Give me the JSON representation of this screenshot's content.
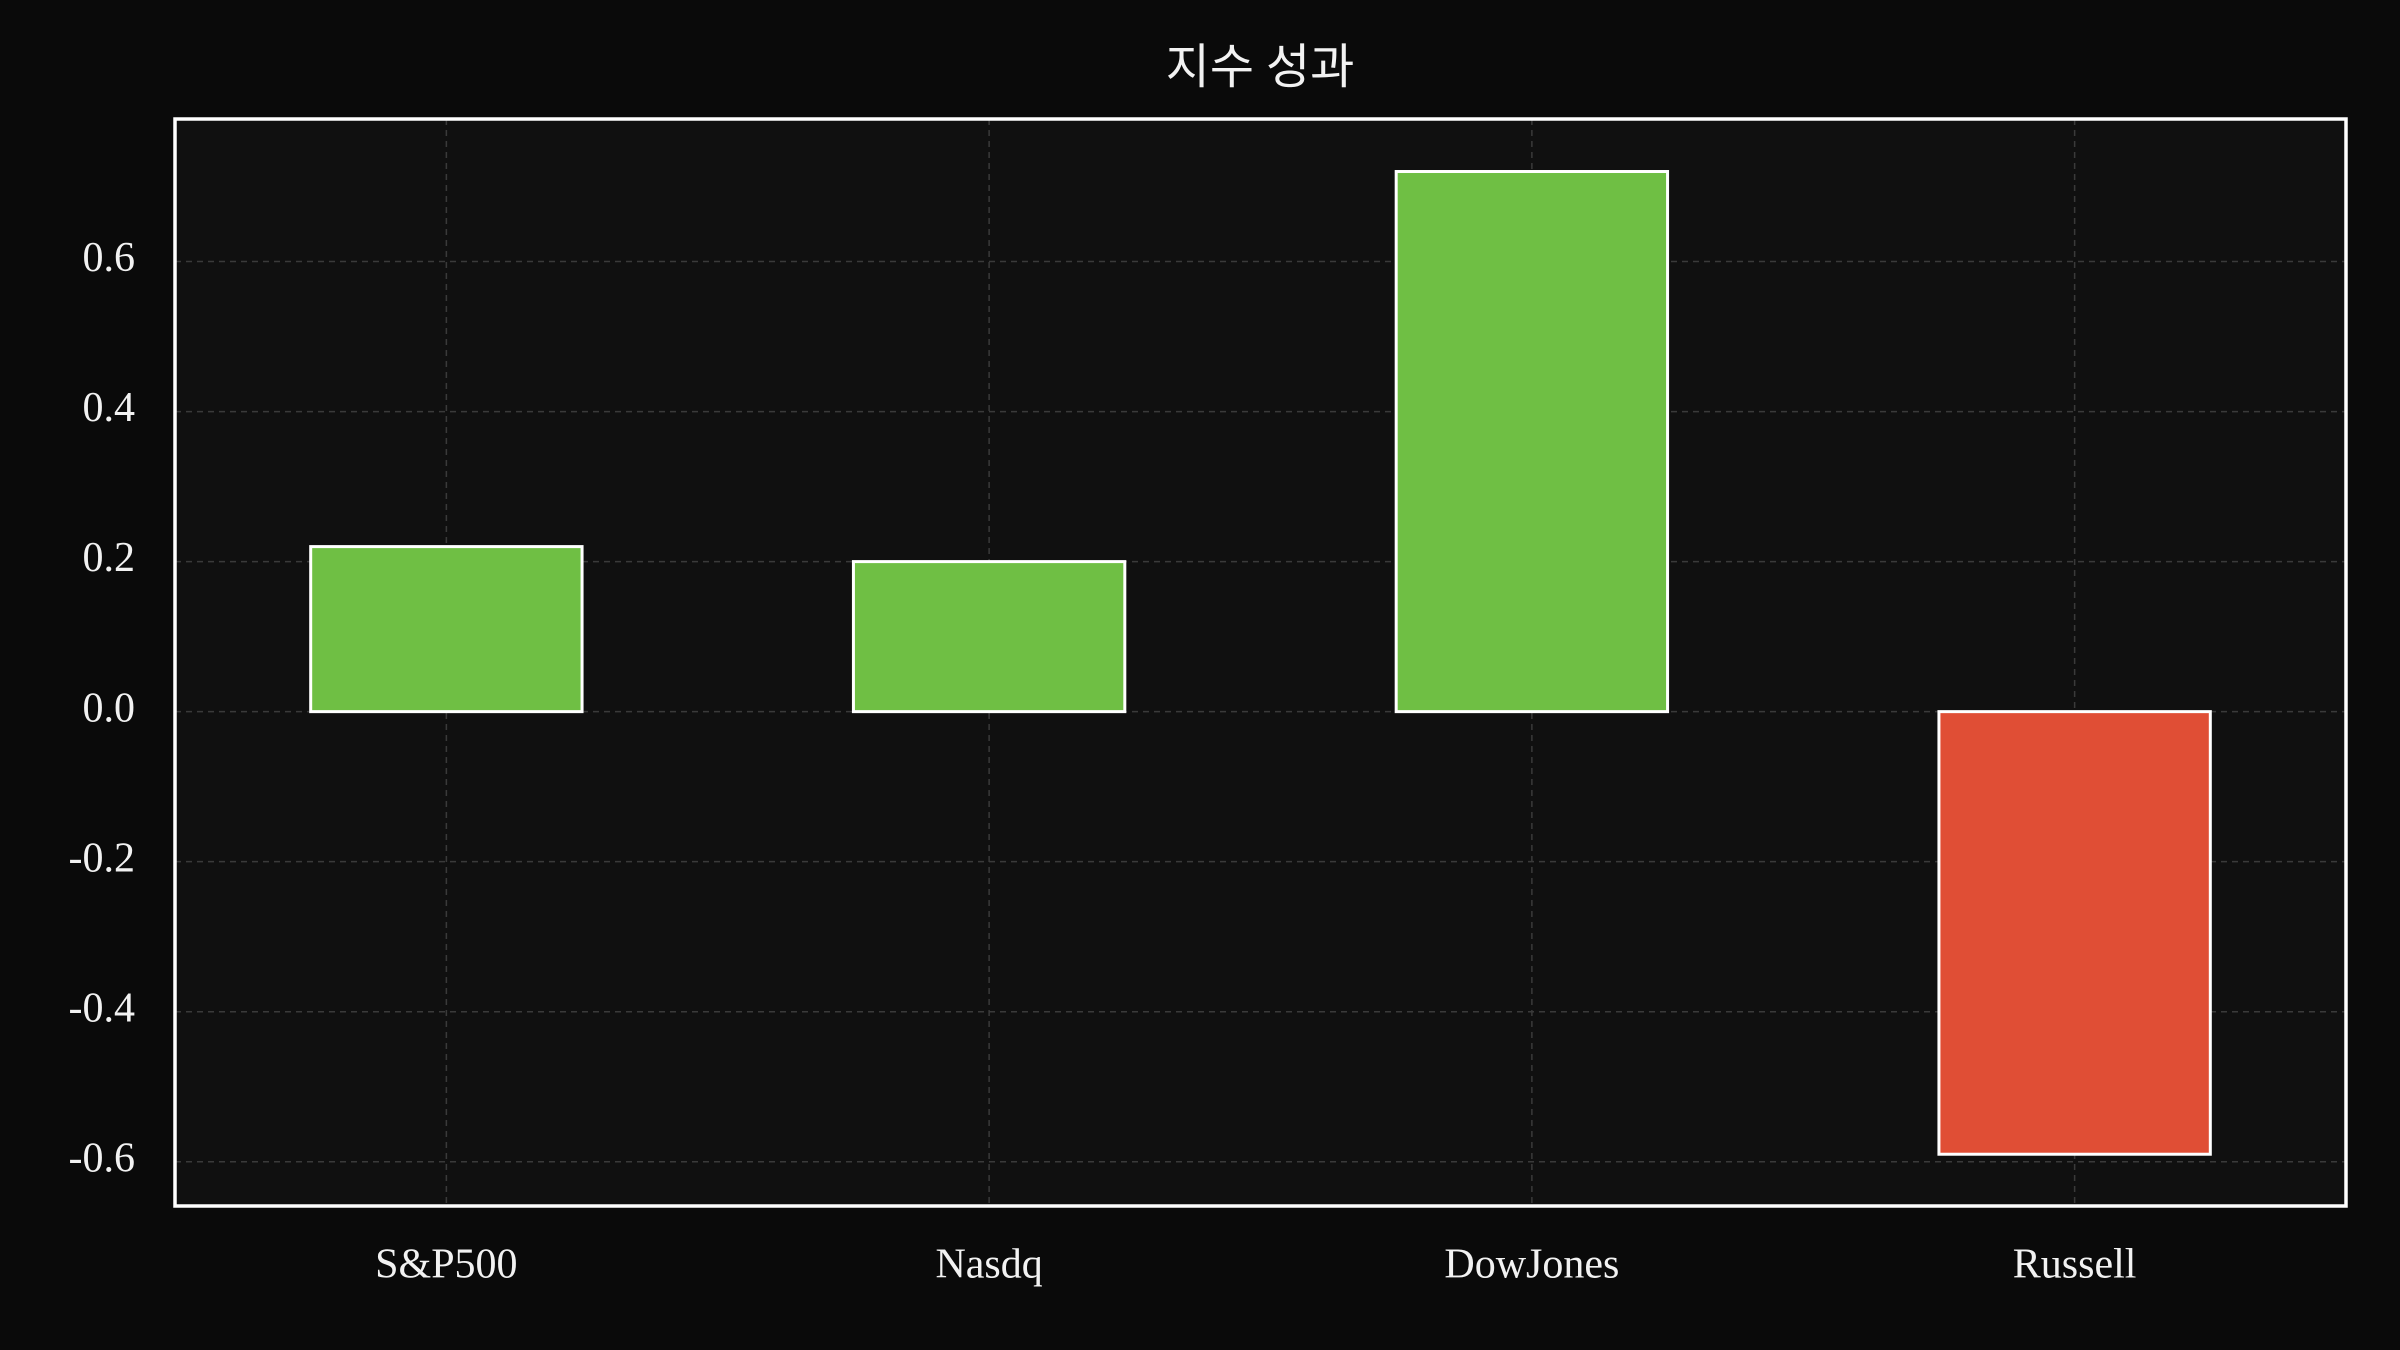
{
  "chart_data": {
    "type": "bar",
    "title": "지수 성과",
    "categories": [
      "S&P500",
      "Nasdq",
      "DowJones",
      "Russell"
    ],
    "values": [
      0.22,
      0.2,
      0.72,
      -0.59
    ],
    "colors": [
      "#6fbf44",
      "#6fbf44",
      "#6fbf44",
      "#e04e35"
    ],
    "ylim": [
      -0.659,
      0.79
    ],
    "yticks": [
      -0.6,
      -0.4,
      -0.2,
      {
        "value": 0,
        "label": "0.0"
      },
      0.2,
      0.4,
      0.6
    ],
    "grid": true
  }
}
